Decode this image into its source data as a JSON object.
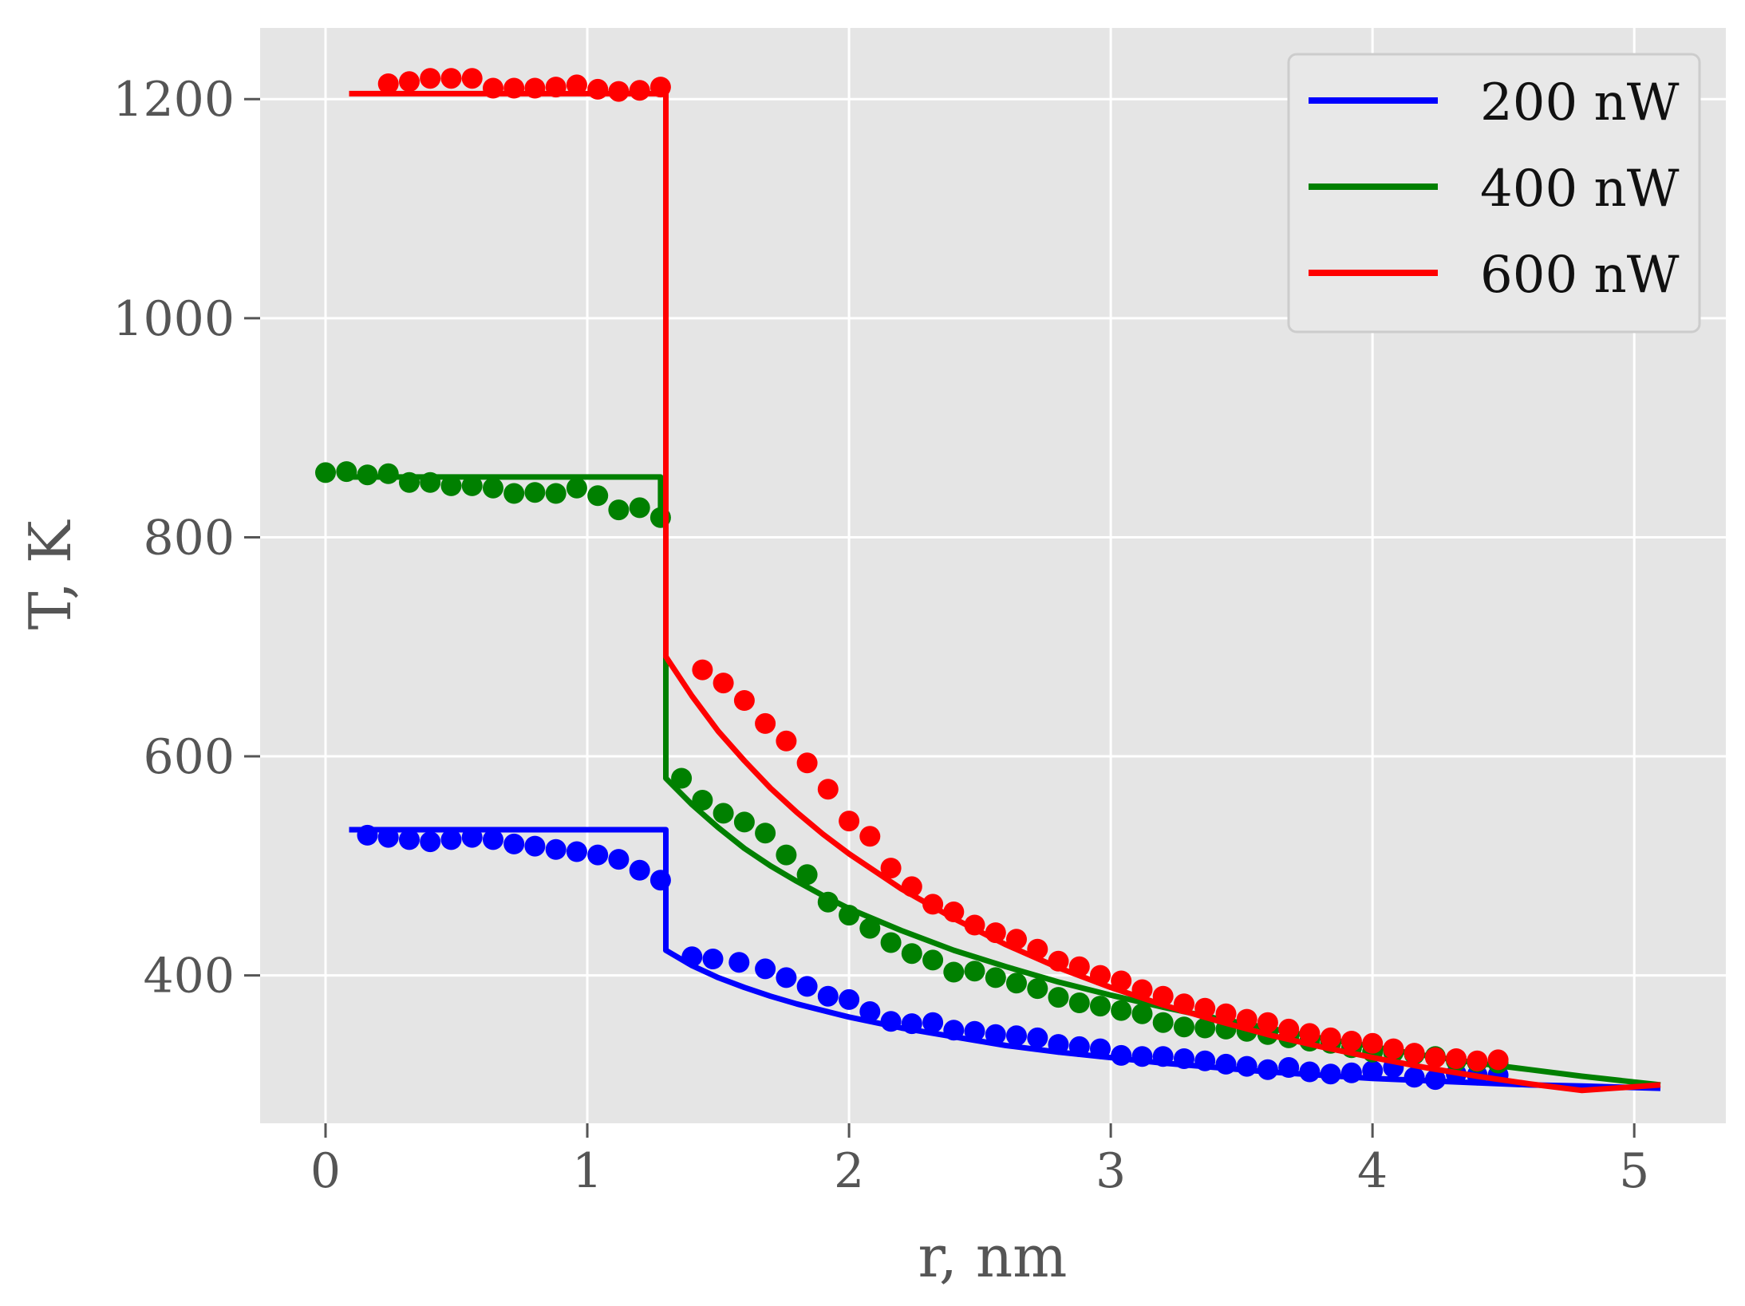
{
  "chart_data": {
    "type": "line",
    "title": "",
    "xlabel": "r, nm",
    "ylabel": "T, K",
    "xlim": [
      -0.25,
      5.35
    ],
    "ylim": [
      265,
      1265
    ],
    "xticks": [
      0,
      1,
      2,
      3,
      4,
      5
    ],
    "yticks": [
      400,
      600,
      800,
      1000,
      1200
    ],
    "grid": true,
    "legend_position": "top-right",
    "background": "#e5e5e5",
    "series": [
      {
        "name": "200 nW",
        "color": "#0000ff",
        "line": [
          [
            0.09,
            533
          ],
          [
            1.3,
            533
          ],
          [
            1.3,
            423
          ],
          [
            1.4,
            409
          ],
          [
            1.5,
            398
          ],
          [
            1.6,
            389
          ],
          [
            1.7,
            381
          ],
          [
            1.8,
            374
          ],
          [
            1.9,
            368
          ],
          [
            2.0,
            362
          ],
          [
            2.2,
            352
          ],
          [
            2.4,
            344
          ],
          [
            2.6,
            336
          ],
          [
            2.8,
            330
          ],
          [
            3.0,
            325
          ],
          [
            3.2,
            320
          ],
          [
            3.4,
            316
          ],
          [
            3.6,
            312
          ],
          [
            3.8,
            309
          ],
          [
            4.0,
            306
          ],
          [
            4.2,
            304
          ],
          [
            4.4,
            302
          ],
          [
            4.6,
            300
          ],
          [
            4.8,
            299
          ],
          [
            5.1,
            297
          ]
        ],
        "points": [
          [
            0.16,
            528
          ],
          [
            0.24,
            526
          ],
          [
            0.32,
            524
          ],
          [
            0.4,
            522
          ],
          [
            0.48,
            524
          ],
          [
            0.56,
            526
          ],
          [
            0.64,
            524
          ],
          [
            0.72,
            520
          ],
          [
            0.8,
            518
          ],
          [
            0.88,
            515
          ],
          [
            0.96,
            513
          ],
          [
            1.04,
            510
          ],
          [
            1.12,
            506
          ],
          [
            1.2,
            496
          ],
          [
            1.28,
            487
          ],
          [
            1.4,
            417
          ],
          [
            1.48,
            415
          ],
          [
            1.58,
            412
          ],
          [
            1.68,
            406
          ],
          [
            1.76,
            398
          ],
          [
            1.84,
            390
          ],
          [
            1.92,
            381
          ],
          [
            2.0,
            378
          ],
          [
            2.08,
            367
          ],
          [
            2.16,
            358
          ],
          [
            2.24,
            356
          ],
          [
            2.32,
            357
          ],
          [
            2.4,
            350
          ],
          [
            2.48,
            349
          ],
          [
            2.56,
            346
          ],
          [
            2.64,
            345
          ],
          [
            2.72,
            343
          ],
          [
            2.8,
            337
          ],
          [
            2.88,
            335
          ],
          [
            2.96,
            333
          ],
          [
            3.04,
            327
          ],
          [
            3.12,
            326
          ],
          [
            3.2,
            326
          ],
          [
            3.28,
            324
          ],
          [
            3.36,
            322
          ],
          [
            3.44,
            319
          ],
          [
            3.52,
            317
          ],
          [
            3.6,
            314
          ],
          [
            3.68,
            316
          ],
          [
            3.76,
            312
          ],
          [
            3.84,
            310
          ],
          [
            3.92,
            311
          ],
          [
            4.0,
            313
          ],
          [
            4.08,
            316
          ],
          [
            4.16,
            307
          ],
          [
            4.24,
            305
          ],
          [
            4.32,
            310
          ],
          [
            4.4,
            309
          ],
          [
            4.48,
            309
          ]
        ]
      },
      {
        "name": "400 nW",
        "color": "#008000",
        "line": [
          [
            0.09,
            855
          ],
          [
            1.28,
            855
          ],
          [
            1.28,
            815
          ],
          [
            1.3,
            815
          ],
          [
            1.3,
            688
          ],
          [
            1.3,
            580
          ],
          [
            1.4,
            556
          ],
          [
            1.5,
            535
          ],
          [
            1.6,
            516
          ],
          [
            1.7,
            500
          ],
          [
            1.8,
            486
          ],
          [
            1.9,
            473
          ],
          [
            2.0,
            461
          ],
          [
            2.2,
            441
          ],
          [
            2.4,
            423
          ],
          [
            2.6,
            408
          ],
          [
            2.8,
            394
          ],
          [
            3.0,
            382
          ],
          [
            3.2,
            371
          ],
          [
            3.4,
            361
          ],
          [
            3.6,
            352
          ],
          [
            3.8,
            343
          ],
          [
            4.0,
            335
          ],
          [
            4.2,
            327
          ],
          [
            4.4,
            320
          ],
          [
            4.6,
            314
          ],
          [
            4.8,
            308
          ],
          [
            5.1,
            300
          ]
        ],
        "points": [
          [
            0.0,
            859
          ],
          [
            0.08,
            860
          ],
          [
            0.16,
            857
          ],
          [
            0.24,
            858
          ],
          [
            0.32,
            850
          ],
          [
            0.4,
            850
          ],
          [
            0.48,
            847
          ],
          [
            0.56,
            847
          ],
          [
            0.64,
            845
          ],
          [
            0.72,
            840
          ],
          [
            0.8,
            841
          ],
          [
            0.88,
            840
          ],
          [
            0.96,
            845
          ],
          [
            1.04,
            838
          ],
          [
            1.12,
            825
          ],
          [
            1.2,
            827
          ],
          [
            1.28,
            818
          ],
          [
            1.36,
            580
          ],
          [
            1.44,
            560
          ],
          [
            1.52,
            548
          ],
          [
            1.6,
            540
          ],
          [
            1.68,
            530
          ],
          [
            1.76,
            510
          ],
          [
            1.84,
            492
          ],
          [
            1.92,
            467
          ],
          [
            2.0,
            455
          ],
          [
            2.08,
            443
          ],
          [
            2.16,
            430
          ],
          [
            2.24,
            420
          ],
          [
            2.32,
            414
          ],
          [
            2.4,
            403
          ],
          [
            2.48,
            404
          ],
          [
            2.56,
            398
          ],
          [
            2.64,
            393
          ],
          [
            2.72,
            388
          ],
          [
            2.8,
            380
          ],
          [
            2.88,
            375
          ],
          [
            2.96,
            372
          ],
          [
            3.04,
            368
          ],
          [
            3.12,
            365
          ],
          [
            3.2,
            357
          ],
          [
            3.28,
            353
          ],
          [
            3.36,
            352
          ],
          [
            3.44,
            351
          ],
          [
            3.52,
            349
          ],
          [
            3.6,
            346
          ],
          [
            3.68,
            343
          ],
          [
            3.76,
            340
          ],
          [
            3.84,
            338
          ],
          [
            3.92,
            334
          ],
          [
            4.0,
            330
          ],
          [
            4.08,
            330
          ],
          [
            4.16,
            328
          ],
          [
            4.24,
            326
          ],
          [
            4.32,
            322
          ],
          [
            4.4,
            321
          ],
          [
            4.48,
            320
          ]
        ]
      },
      {
        "name": "600 nW",
        "color": "#ff0000",
        "line": [
          [
            0.09,
            1205
          ],
          [
            1.3,
            1205
          ],
          [
            1.3,
            691
          ],
          [
            1.4,
            655
          ],
          [
            1.5,
            623
          ],
          [
            1.6,
            596
          ],
          [
            1.7,
            571
          ],
          [
            1.8,
            549
          ],
          [
            1.9,
            529
          ],
          [
            2.0,
            511
          ],
          [
            2.2,
            479
          ],
          [
            2.4,
            452
          ],
          [
            2.6,
            428
          ],
          [
            2.8,
            407
          ],
          [
            3.0,
            389
          ],
          [
            3.2,
            373
          ],
          [
            3.4,
            359
          ],
          [
            3.6,
            346
          ],
          [
            3.8,
            335
          ],
          [
            4.0,
            325
          ],
          [
            4.2,
            316
          ],
          [
            4.4,
            308
          ],
          [
            4.6,
            301
          ],
          [
            4.8,
            295
          ],
          [
            5.1,
            300
          ]
        ],
        "points": [
          [
            0.24,
            1214
          ],
          [
            0.32,
            1216
          ],
          [
            0.4,
            1219
          ],
          [
            0.48,
            1219
          ],
          [
            0.56,
            1219
          ],
          [
            0.64,
            1210
          ],
          [
            0.72,
            1210
          ],
          [
            0.8,
            1210
          ],
          [
            0.88,
            1211
          ],
          [
            0.96,
            1213
          ],
          [
            1.04,
            1209
          ],
          [
            1.12,
            1207
          ],
          [
            1.2,
            1208
          ],
          [
            1.28,
            1211
          ],
          [
            1.44,
            679
          ],
          [
            1.52,
            667
          ],
          [
            1.6,
            651
          ],
          [
            1.68,
            630
          ],
          [
            1.76,
            614
          ],
          [
            1.84,
            594
          ],
          [
            1.92,
            570
          ],
          [
            2.0,
            541
          ],
          [
            2.08,
            527
          ],
          [
            2.16,
            498
          ],
          [
            2.24,
            481
          ],
          [
            2.32,
            465
          ],
          [
            2.4,
            458
          ],
          [
            2.48,
            446
          ],
          [
            2.56,
            439
          ],
          [
            2.64,
            433
          ],
          [
            2.72,
            424
          ],
          [
            2.8,
            413
          ],
          [
            2.88,
            408
          ],
          [
            2.96,
            400
          ],
          [
            3.04,
            395
          ],
          [
            3.12,
            387
          ],
          [
            3.2,
            381
          ],
          [
            3.28,
            374
          ],
          [
            3.36,
            370
          ],
          [
            3.44,
            365
          ],
          [
            3.52,
            360
          ],
          [
            3.6,
            357
          ],
          [
            3.68,
            351
          ],
          [
            3.76,
            347
          ],
          [
            3.84,
            343
          ],
          [
            3.92,
            340
          ],
          [
            4.0,
            338
          ],
          [
            4.08,
            333
          ],
          [
            4.16,
            329
          ],
          [
            4.24,
            325
          ],
          [
            4.32,
            324
          ],
          [
            4.4,
            322
          ],
          [
            4.48,
            323
          ]
        ]
      }
    ]
  }
}
